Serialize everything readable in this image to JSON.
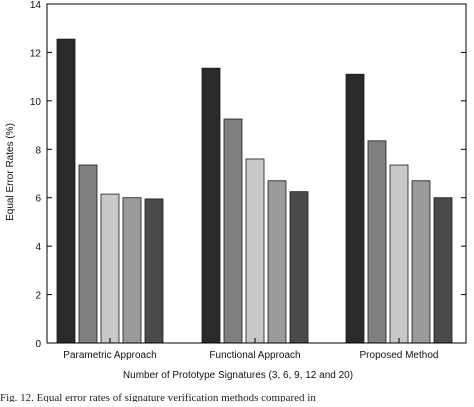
{
  "chart_data": {
    "type": "bar",
    "categories": [
      "Parametric Approach",
      "Functional Approach",
      "Proposed Method"
    ],
    "series": [
      {
        "values": [
          12.55,
          11.35,
          11.1
        ],
        "color": "#2a2a2a"
      },
      {
        "values": [
          7.35,
          9.25,
          8.35
        ],
        "color": "#808080"
      },
      {
        "values": [
          6.15,
          7.6,
          7.35
        ],
        "color": "#c8c8c8"
      },
      {
        "values": [
          6.0,
          6.7,
          6.7
        ],
        "color": "#9a9a9a"
      },
      {
        "values": [
          5.95,
          6.25,
          6.0
        ],
        "color": "#4a4a4a"
      }
    ],
    "xlabel": "Number of Prototype Signatures (3, 6, 9, 12 and 20)",
    "ylabel": "Equal Error Rates (%)",
    "ylim": [
      0,
      14
    ],
    "yticks": [
      0,
      2,
      4,
      6,
      8,
      10,
      12,
      14
    ],
    "grid": false
  },
  "caption": "Fig. 12. Equal error rates of signature verification methods compared in"
}
